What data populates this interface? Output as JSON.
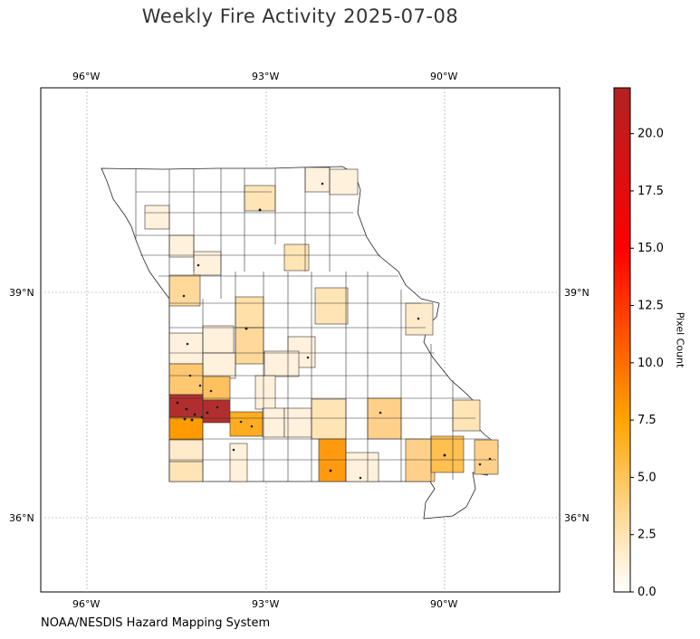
{
  "title": "Weekly Fire Activity 2025-07-08",
  "attribution": "NOAA/NESDIS Hazard Mapping System",
  "map": {
    "region": "Missouri counties",
    "gridlines": true,
    "lon_ticks": [
      "96°W",
      "93°W",
      "90°W"
    ],
    "lat_ticks": [
      "39°N",
      "36°N"
    ]
  },
  "colorbar": {
    "label": "Pixel Count",
    "ticks": [
      "0.0",
      "2.5",
      "5.0",
      "7.5",
      "10.0",
      "12.5",
      "15.0",
      "17.5",
      "20.0"
    ],
    "range": [
      0,
      22
    ],
    "colors": [
      "#ffffff",
      "#ffe4b5",
      "#ffa500",
      "#ff0000",
      "#b22222"
    ]
  },
  "chart_data": {
    "type": "choropleth",
    "variable": "Pixel Count",
    "vmin": 0,
    "vmax": 22
  }
}
